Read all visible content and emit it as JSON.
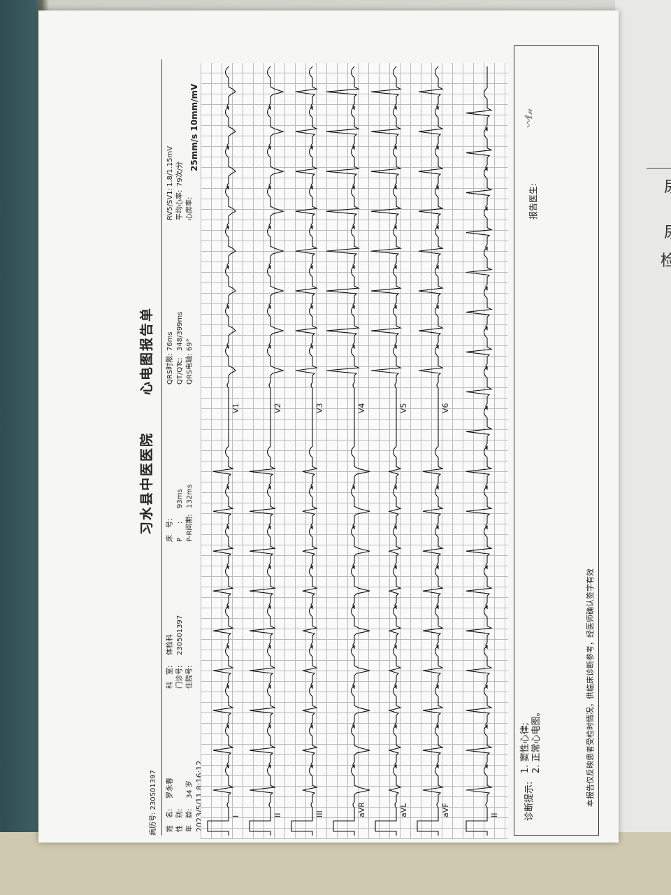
{
  "report": {
    "hospital": "习水县中医医院",
    "title": "心电图报告单",
    "record_no_label": "病历号:",
    "record_no": "230501397",
    "patient": [
      {
        "label": "姓　名:",
        "value": "罗永春"
      },
      {
        "label": "性　别:",
        "value": ""
      },
      {
        "label": "年　龄:",
        "value": "34 岁"
      }
    ],
    "datetime": "2023/5/11 8:16:12",
    "dept": [
      {
        "label": "科　室:",
        "value": "体检科"
      },
      {
        "label": "门诊号:",
        "value": "230501397"
      },
      {
        "label": "住院号:",
        "value": ""
      }
    ],
    "bed": [
      {
        "label": "床　号:",
        "value": ""
      },
      {
        "label": "P　　:",
        "value": "93ms"
      },
      {
        "label": "P-R间期:",
        "value": "132ms"
      }
    ],
    "qrs": [
      {
        "label": "QRS时限:",
        "value": "76ms"
      },
      {
        "label": "QT/QTc:",
        "value": "348/399ms"
      },
      {
        "label": "QRS电轴:",
        "value": "69°"
      }
    ],
    "rate": [
      {
        "label": "RV5/SV1:",
        "value": "1.8/1.15mV"
      },
      {
        "label": "平均心率:",
        "value": "79次/分"
      },
      {
        "label": "心房率:",
        "value": ""
      }
    ],
    "scale": "25mm/s 10mm/mV"
  },
  "ecg": {
    "leads_left": [
      "I",
      "II",
      "III",
      "aVR",
      "aVL",
      "aVF",
      "II"
    ],
    "leads_right": [
      "V1",
      "V2",
      "V3",
      "V4",
      "V5",
      "V6"
    ],
    "heart_rate_bpm": 79
  },
  "diagnosis": {
    "label": "诊断提示:",
    "items": [
      "1. 窦性心律;",
      "2. 正常心电图。"
    ]
  },
  "doctor_label": "报告医生:",
  "footer": "本报告仅反映患者受检时情况，供临床诊断参考，经医师确认签字有效",
  "side_doc": [
    "尿",
    "尿",
    "检"
  ]
}
